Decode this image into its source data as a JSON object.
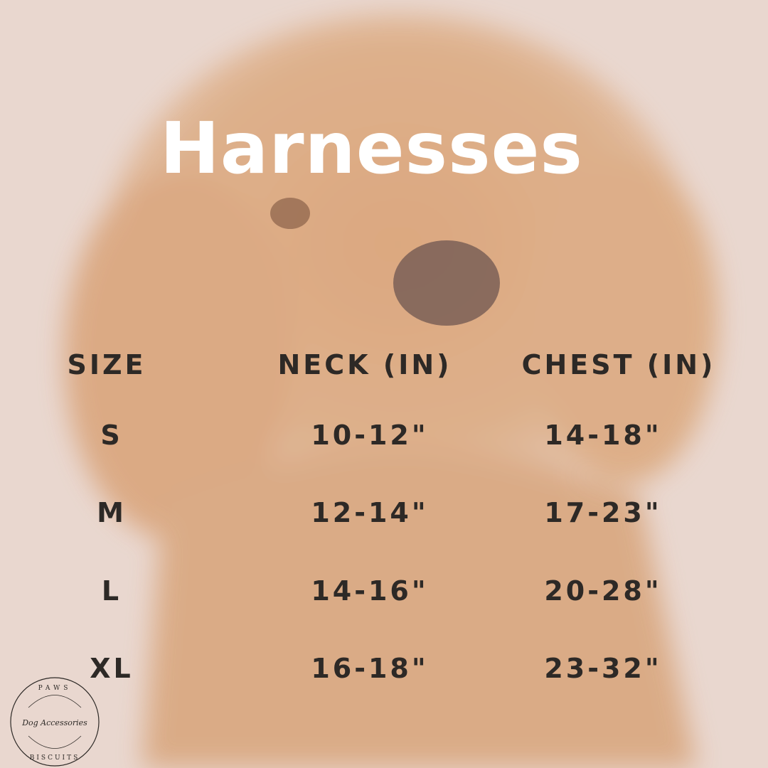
{
  "title": "Harnesses",
  "table": {
    "headers": [
      "SIZE",
      "NECK (IN)",
      "CHEST (IN)"
    ],
    "rows": [
      [
        "S",
        "10-12\"",
        "14-18\""
      ],
      [
        "M",
        "12-14\"",
        "17-23\""
      ],
      [
        "L",
        "14-16\"",
        "20-28\""
      ],
      [
        "XL",
        "16-18\"",
        "23-32\""
      ]
    ]
  },
  "logo": {
    "top": "PAWS",
    "middle": "Dog Accessories",
    "bottom": "BISCUITS"
  },
  "colors": {
    "background": "#e9d7cf",
    "text": "#2d2926",
    "title": "#ffffff",
    "fur": "#d9a57a"
  }
}
